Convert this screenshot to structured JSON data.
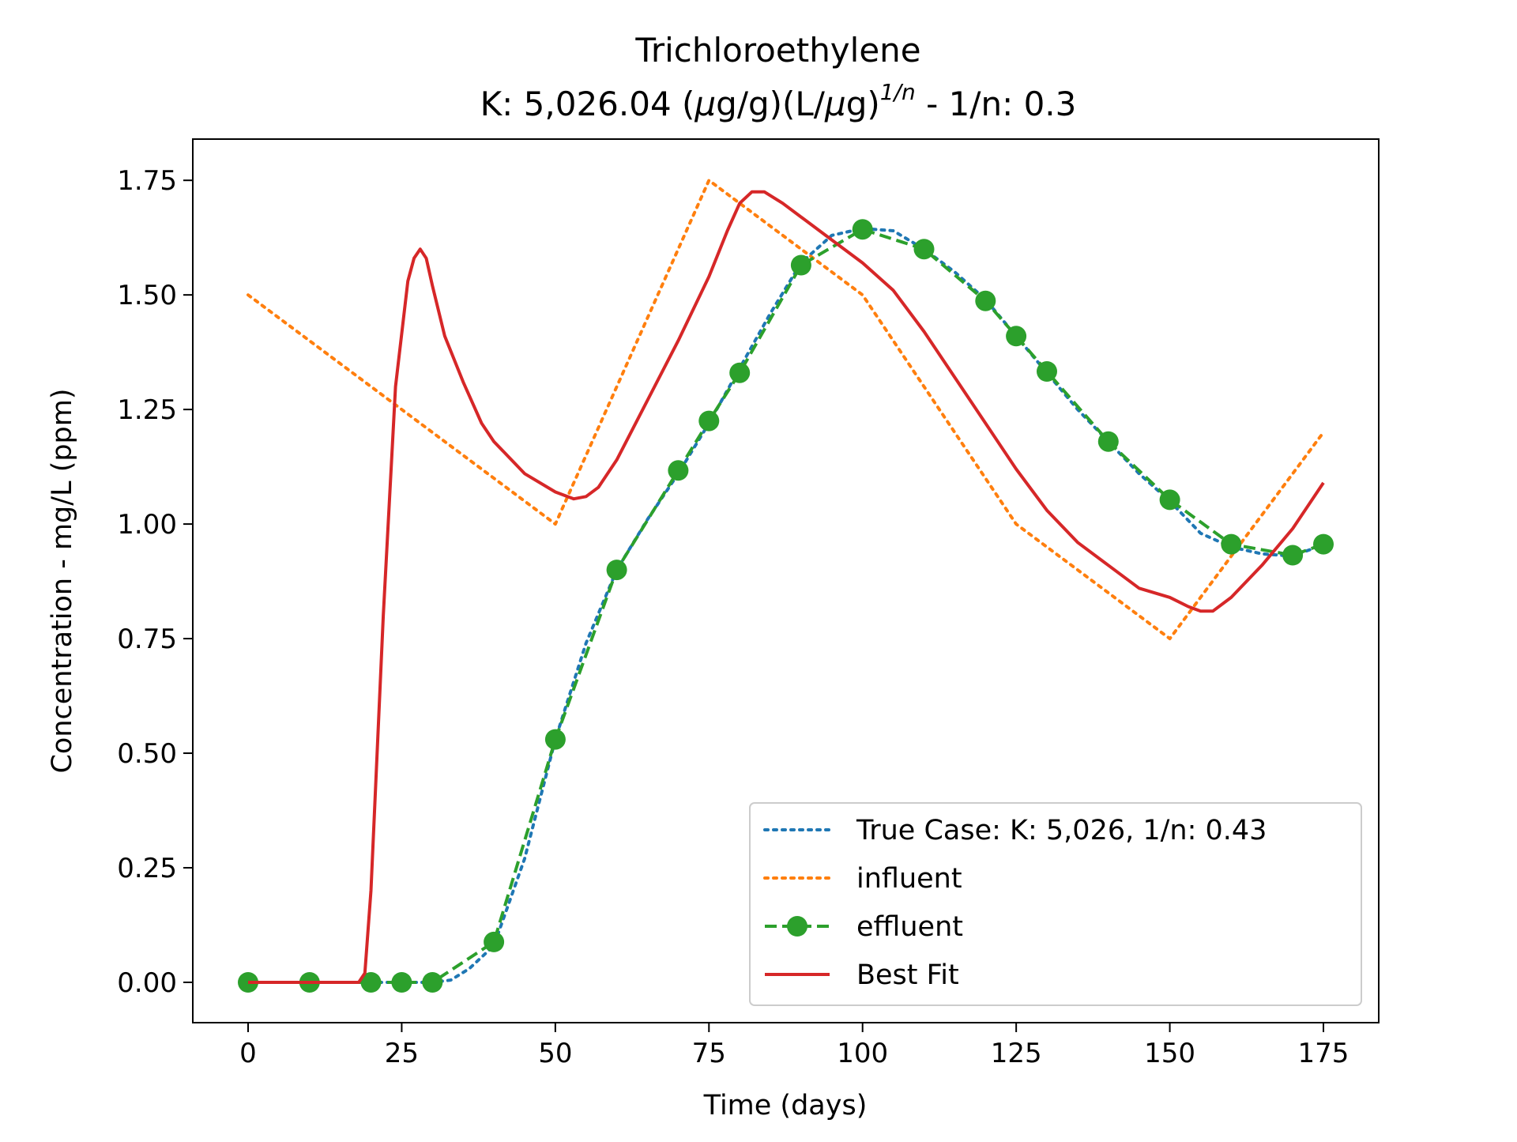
{
  "chart_data": {
    "type": "line",
    "title": "Trichloroethylene",
    "subtitle_parts": {
      "prefix": "K: 5,026.04 (",
      "mu1": "μ",
      "mid": "g/g)(L/",
      "mu2": "μ",
      "close": "g)",
      "sup": "1/n",
      "suffix": " - 1/n: 0.3"
    },
    "xlabel": "Time (days)",
    "ylabel": "Concentration - mg/L (ppm)",
    "xlim": [
      -9,
      184
    ],
    "ylim": [
      -0.088,
      1.84
    ],
    "xticks": [
      0,
      25,
      50,
      75,
      100,
      125,
      150,
      175
    ],
    "xtick_labels": [
      "0",
      "25",
      "50",
      "75",
      "100",
      "125",
      "150",
      "175"
    ],
    "yticks": [
      0,
      0.25,
      0.5,
      0.75,
      1.0,
      1.25,
      1.5,
      1.75
    ],
    "ytick_labels": [
      "0.00",
      "0.25",
      "0.50",
      "0.75",
      "1.00",
      "1.25",
      "1.50",
      "1.75"
    ],
    "grid": false,
    "legend_position": "lower-right",
    "series": [
      {
        "name": "True Case: K: 5,026, 1/n: 0.43",
        "color": "#1f77b4",
        "style": "dotted",
        "x": [
          0,
          10,
          20,
          25,
          30,
          33,
          36,
          40,
          45,
          50,
          55,
          60,
          65,
          70,
          75,
          80,
          85,
          90,
          95,
          100,
          105,
          110,
          115,
          120,
          125,
          130,
          135,
          140,
          145,
          150,
          155,
          160,
          165,
          170,
          175
        ],
        "y": [
          0,
          0,
          0,
          0,
          0,
          0.005,
          0.03,
          0.08,
          0.27,
          0.53,
          0.74,
          0.9,
          1.01,
          1.11,
          1.22,
          1.34,
          1.46,
          1.57,
          1.63,
          1.645,
          1.64,
          1.6,
          1.55,
          1.49,
          1.41,
          1.33,
          1.25,
          1.18,
          1.11,
          1.05,
          0.98,
          0.95,
          0.935,
          0.93,
          0.955
        ]
      },
      {
        "name": "influent",
        "color": "#ff7f0e",
        "style": "dotted",
        "x": [
          0,
          50,
          75,
          100,
          125,
          150,
          175
        ],
        "y": [
          1.5,
          1.0,
          1.75,
          1.5,
          1.0,
          0.75,
          1.2
        ]
      },
      {
        "name": "effluent",
        "color": "#2ca02c",
        "style": "dashed-markers",
        "x": [
          0,
          10,
          20,
          25,
          30,
          40,
          50,
          60,
          70,
          75,
          80,
          90,
          100,
          110,
          120,
          125,
          130,
          140,
          150,
          160,
          170,
          175
        ],
        "y": [
          0,
          0,
          0,
          0,
          0,
          0.088,
          0.53,
          0.9,
          1.117,
          1.225,
          1.33,
          1.565,
          1.643,
          1.6,
          1.487,
          1.41,
          1.333,
          1.18,
          1.053,
          0.956,
          0.932,
          0.956
        ]
      },
      {
        "name": "Best Fit",
        "color": "#d62728",
        "style": "solid",
        "x": [
          0,
          10,
          18,
          19,
          20,
          22,
          24,
          26,
          27,
          28,
          29,
          30,
          32,
          35,
          38,
          40,
          45,
          50,
          53,
          55,
          57,
          60,
          65,
          70,
          75,
          78,
          80,
          82,
          84,
          87,
          90,
          95,
          100,
          105,
          110,
          115,
          120,
          125,
          130,
          135,
          140,
          145,
          150,
          153,
          155,
          157,
          160,
          165,
          170,
          175
        ],
        "y": [
          0,
          0,
          0,
          0.02,
          0.2,
          0.8,
          1.3,
          1.53,
          1.58,
          1.6,
          1.58,
          1.52,
          1.41,
          1.31,
          1.22,
          1.18,
          1.11,
          1.07,
          1.055,
          1.06,
          1.08,
          1.14,
          1.27,
          1.4,
          1.54,
          1.64,
          1.7,
          1.725,
          1.725,
          1.7,
          1.67,
          1.62,
          1.57,
          1.51,
          1.42,
          1.32,
          1.22,
          1.12,
          1.03,
          0.96,
          0.91,
          0.86,
          0.84,
          0.82,
          0.81,
          0.81,
          0.84,
          0.91,
          0.99,
          1.09
        ]
      }
    ]
  }
}
